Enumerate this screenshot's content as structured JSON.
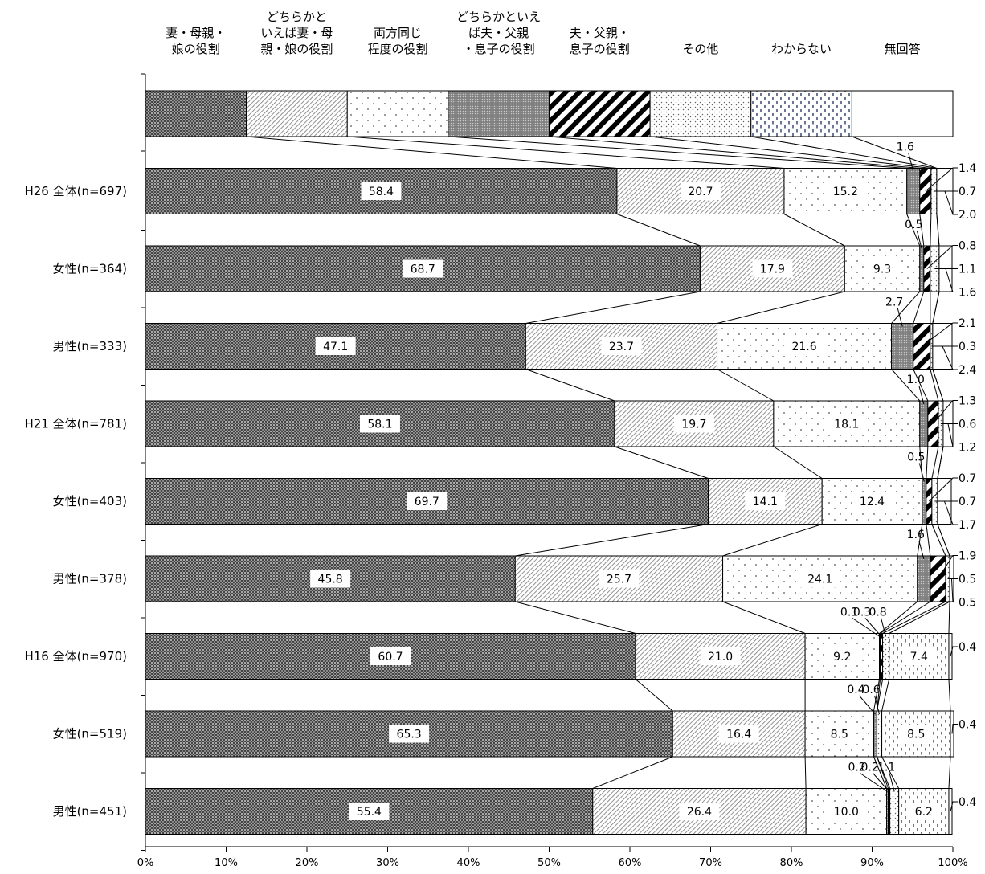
{
  "chart_data": {
    "type": "bar",
    "orientation": "horizontal",
    "stacked": true,
    "percent_stacked": true,
    "xlim": [
      0,
      100
    ],
    "x_tick_labels": [
      "0%",
      "10%",
      "20%",
      "30%",
      "40%",
      "50%",
      "60%",
      "70%",
      "80%",
      "90%",
      "100%"
    ],
    "legend_placement": "top",
    "grid": false,
    "series": [
      {
        "name": "妻・母親・娘の役割",
        "name_lines": [
          "妻・母親・",
          "娘の役割"
        ],
        "pattern": "checker"
      },
      {
        "name": "どちらかといえば妻・母親・娘の役割",
        "name_lines": [
          "どちらかと",
          "いえば妻・母",
          "親・娘の役割"
        ],
        "pattern": "diag-thin"
      },
      {
        "name": "両方同じ程度の役割",
        "name_lines": [
          "両方同じ",
          "程度の役割"
        ],
        "pattern": "sparse-dots"
      },
      {
        "name": "どちらかといえば夫・父親・息子の役割",
        "name_lines": [
          "どちらかといえ",
          "ば夫・父親",
          "・息子の役割"
        ],
        "pattern": "gray-dense"
      },
      {
        "name": "夫・父親・息子の役割",
        "name_lines": [
          "夫・父親・",
          "息子の役割"
        ],
        "pattern": "diag-thick"
      },
      {
        "name": "その他",
        "name_lines": [
          "その他"
        ],
        "pattern": "fine-dots"
      },
      {
        "name": "わからない",
        "name_lines": [
          "わからない"
        ],
        "pattern": "dashes"
      },
      {
        "name": "無回答",
        "name_lines": [
          "無回答"
        ],
        "pattern": "white"
      }
    ],
    "categories": [
      {
        "label": "H26 全体(n=697)",
        "values": [
          58.4,
          20.7,
          15.2,
          1.6,
          1.4,
          0.7,
          0.0,
          2.0
        ],
        "inside_labels": [
          "58.4",
          "20.7",
          "15.2",
          "",
          "",
          "",
          "",
          ""
        ],
        "small_left": [
          {
            "series": 3,
            "text": "1.6"
          }
        ],
        "small_right": [
          {
            "series": 4,
            "text": "1.4"
          },
          {
            "series": 5,
            "text": "0.7"
          },
          {
            "series": 7,
            "text": "2.0"
          }
        ]
      },
      {
        "label": "女性(n=364)",
        "values": [
          68.7,
          17.9,
          9.3,
          0.5,
          0.8,
          1.1,
          0.0,
          1.6
        ],
        "inside_labels": [
          "68.7",
          "17.9",
          "9.3",
          "",
          "",
          "",
          "",
          ""
        ],
        "small_left": [
          {
            "series": 3,
            "text": "0.5"
          }
        ],
        "small_right": [
          {
            "series": 4,
            "text": "0.8"
          },
          {
            "series": 5,
            "text": "1.1"
          },
          {
            "series": 7,
            "text": "1.6"
          }
        ]
      },
      {
        "label": "男性(n=333)",
        "values": [
          47.1,
          23.7,
          21.6,
          2.7,
          2.1,
          0.3,
          0.0,
          2.4
        ],
        "inside_labels": [
          "47.1",
          "23.7",
          "21.6",
          "",
          "",
          "",
          "",
          ""
        ],
        "small_left": [
          {
            "series": 3,
            "text": "2.7"
          }
        ],
        "small_right": [
          {
            "series": 4,
            "text": "2.1"
          },
          {
            "series": 5,
            "text": "0.3"
          },
          {
            "series": 7,
            "text": "2.4"
          }
        ]
      },
      {
        "label": "H21 全体(n=781)",
        "values": [
          58.1,
          19.7,
          18.1,
          1.0,
          1.3,
          0.6,
          0.0,
          1.2
        ],
        "inside_labels": [
          "58.1",
          "19.7",
          "18.1",
          "",
          "",
          "",
          "",
          ""
        ],
        "small_left": [
          {
            "series": 3,
            "text": "1.0"
          }
        ],
        "small_right": [
          {
            "series": 4,
            "text": "1.3"
          },
          {
            "series": 5,
            "text": "0.6"
          },
          {
            "series": 7,
            "text": "1.2"
          }
        ]
      },
      {
        "label": "女性(n=403)",
        "values": [
          69.7,
          14.1,
          12.4,
          0.5,
          0.7,
          0.7,
          0.0,
          1.7
        ],
        "inside_labels": [
          "69.7",
          "14.1",
          "12.4",
          "",
          "",
          "",
          "",
          ""
        ],
        "small_left": [
          {
            "series": 3,
            "text": "0.5"
          }
        ],
        "small_right": [
          {
            "series": 4,
            "text": "0.7"
          },
          {
            "series": 5,
            "text": "0.7"
          },
          {
            "series": 7,
            "text": "1.7"
          }
        ]
      },
      {
        "label": "男性(n=378)",
        "values": [
          45.8,
          25.7,
          24.1,
          1.6,
          1.9,
          0.5,
          0.0,
          0.5
        ],
        "inside_labels": [
          "45.8",
          "25.7",
          "24.1",
          "",
          "",
          "",
          "",
          ""
        ],
        "small_left": [
          {
            "series": 3,
            "text": "1.6"
          }
        ],
        "small_right": [
          {
            "series": 4,
            "text": "1.9"
          },
          {
            "series": 5,
            "text": "0.5"
          },
          {
            "series": 7,
            "text": "0.5"
          }
        ]
      },
      {
        "label": "H16 全体(n=970)",
        "values": [
          60.7,
          21.0,
          9.2,
          0.1,
          0.3,
          0.8,
          7.4,
          0.4
        ],
        "inside_labels": [
          "60.7",
          "21.0",
          "9.2",
          "",
          "",
          "",
          "7.4",
          ""
        ],
        "small_left": [
          {
            "series": 3,
            "text": "0.1"
          },
          {
            "series": 4,
            "text": "0.3"
          },
          {
            "series": 5,
            "text": "0.8"
          }
        ],
        "small_right": [
          {
            "series": 7,
            "text": "0.4"
          }
        ]
      },
      {
        "label": "女性(n=519)",
        "values": [
          65.3,
          16.4,
          8.5,
          0.4,
          0.0,
          0.6,
          8.5,
          0.4
        ],
        "inside_labels": [
          "65.3",
          "16.4",
          "8.5",
          "",
          "",
          "",
          "8.5",
          ""
        ],
        "small_left": [
          {
            "series": 3,
            "text": "0.4"
          },
          {
            "series": 5,
            "text": "0.6"
          }
        ],
        "small_right": [
          {
            "series": 7,
            "text": "0.4"
          }
        ]
      },
      {
        "label": "男性(n=451)",
        "values": [
          55.4,
          26.4,
          10.0,
          0.2,
          0.2,
          1.1,
          6.2,
          0.4
        ],
        "inside_labels": [
          "55.4",
          "26.4",
          "10.0",
          "",
          "",
          "",
          "6.2",
          ""
        ],
        "small_left": [
          {
            "series": 3,
            "text": "0.2"
          },
          {
            "series": 4,
            "text": "0.2"
          },
          {
            "series": 5,
            "text": "1.1"
          }
        ],
        "small_right": [
          {
            "series": 7,
            "text": "0.4"
          }
        ]
      }
    ]
  }
}
